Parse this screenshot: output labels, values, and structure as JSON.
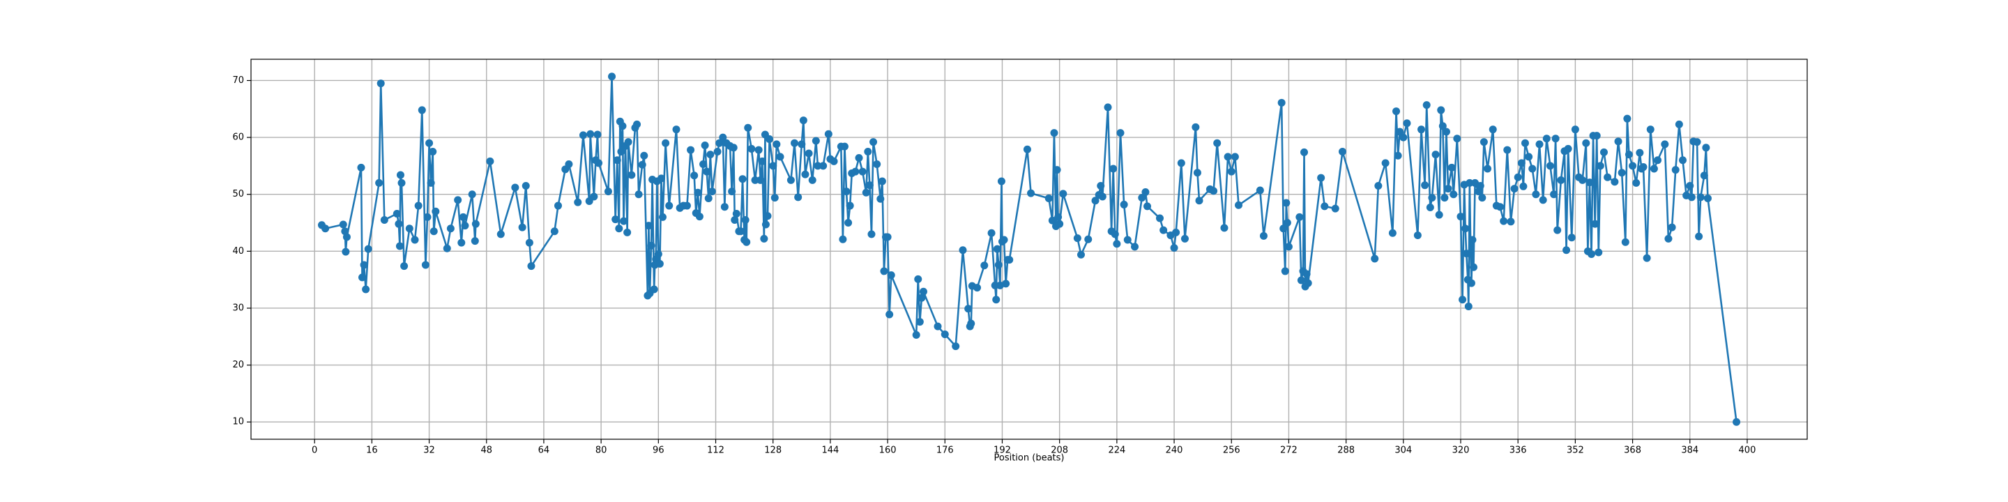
{
  "chart_data": {
    "type": "line",
    "x_label": "Position (beats)",
    "color": "#1f77b4",
    "grid": true,
    "xlim": [
      -17.75,
      416.75
    ],
    "ylim": [
      6.965,
      73.735
    ],
    "xticks": [
      0,
      16,
      32,
      48,
      64,
      80,
      96,
      112,
      128,
      144,
      160,
      176,
      192,
      208,
      224,
      240,
      256,
      272,
      288,
      304,
      320,
      336,
      352,
      368,
      384,
      400
    ],
    "yticks": [
      10,
      20,
      30,
      40,
      50,
      60,
      70
    ],
    "x": [
      2,
      3,
      8,
      8.5,
      8.7,
      9,
      13,
      13.3,
      13.8,
      14.3,
      15,
      18,
      18.5,
      19.5,
      23,
      23.5,
      23.8,
      24,
      24.3,
      25,
      26.5,
      28,
      29,
      30,
      31,
      31.5,
      32,
      32.5,
      33,
      33.3,
      33.8,
      37,
      38,
      40,
      41,
      41.5,
      42,
      44,
      44.8,
      45,
      49,
      52,
      56,
      58,
      59,
      60,
      60.5,
      67,
      68,
      70,
      71,
      73.5,
      75,
      76.7,
      77,
      78,
      78.5,
      79,
      79.3,
      82,
      83,
      84,
      84.5,
      85,
      85.3,
      85.6,
      86,
      86.3,
      86.8,
      87.3,
      87.6,
      88.5,
      89.5,
      90,
      90.5,
      91.5,
      92,
      93,
      93.3,
      93.6,
      94,
      94.3,
      94.8,
      95,
      95.3,
      95.6,
      96,
      96.4,
      96.8,
      97.2,
      98,
      99,
      101,
      102,
      103,
      104,
      105,
      106,
      106.5,
      107,
      107.5,
      108.5,
      109,
      109.5,
      110,
      110.5,
      111,
      112.5,
      113,
      114,
      114.5,
      115,
      116,
      116.5,
      117,
      117.3,
      117.8,
      118.5,
      119,
      119.5,
      120,
      120.3,
      120.6,
      121,
      122,
      123,
      124,
      124.5,
      125,
      125.5,
      125.8,
      126,
      126.5,
      127,
      128,
      128.5,
      129,
      130,
      133,
      134,
      135,
      136,
      136.5,
      137,
      138,
      139,
      140,
      140.5,
      142,
      143.5,
      144,
      145,
      147,
      147.5,
      148,
      148.5,
      149,
      149.5,
      150,
      151,
      152,
      153,
      154,
      154.5,
      155,
      155.5,
      156,
      157,
      158,
      158.5,
      159,
      159.5,
      160,
      160.5,
      161,
      168,
      168.5,
      169,
      169.5,
      170,
      174,
      176,
      179,
      181,
      182.5,
      183,
      183.3,
      183.6,
      185,
      187,
      189,
      190,
      190.3,
      190.6,
      191,
      191.4,
      191.8,
      192,
      192.5,
      193,
      193.5,
      194,
      199,
      200,
      205,
      206,
      206.5,
      207,
      207.3,
      207.6,
      208,
      209,
      213,
      214,
      216,
      218,
      219,
      219.5,
      220,
      221.5,
      222.5,
      223,
      223.5,
      224,
      225,
      226,
      227,
      229,
      231,
      232,
      232.5,
      236,
      237,
      239,
      240,
      240.5,
      242,
      243,
      246,
      246.5,
      247,
      250,
      251,
      252,
      254,
      255,
      256,
      257,
      258,
      264,
      265,
      270,
      270.5,
      271,
      271.3,
      271.6,
      272,
      275,
      275.5,
      276,
      276.3,
      276.6,
      277,
      277.4,
      281,
      282,
      285,
      287,
      296,
      297,
      299,
      301,
      302,
      302.5,
      303,
      304,
      305,
      308,
      309,
      310,
      310.5,
      311.5,
      312,
      313,
      314,
      314.5,
      315,
      315.5,
      316,
      316.5,
      317.5,
      318,
      319,
      320,
      320.5,
      321,
      321.3,
      321.6,
      322,
      322.2,
      322.5,
      322.8,
      323,
      323.3,
      323.6,
      324,
      325,
      325.5,
      326,
      326.5,
      327.5,
      329,
      330,
      331,
      332,
      333,
      334,
      335,
      336,
      337,
      337.5,
      338,
      339,
      340,
      341,
      342,
      343,
      344,
      345,
      346,
      346.5,
      347,
      348,
      349,
      349.5,
      350,
      351,
      352,
      353,
      354,
      355,
      355.5,
      356,
      356.5,
      357,
      357.5,
      358,
      358.5,
      359,
      360,
      361,
      363,
      364,
      365,
      366,
      366.5,
      367,
      368,
      369,
      370,
      370.5,
      371,
      372,
      373,
      374,
      375,
      377,
      378,
      379,
      380,
      381,
      382,
      383,
      384,
      384.5,
      385,
      386,
      386.5,
      387,
      388,
      388.5,
      389,
      397
    ],
    "values": [
      44.6,
      44,
      44.7,
      43.5,
      39.9,
      42.5,
      54.7,
      35.4,
      37.6,
      33.3,
      40.4,
      52,
      69.5,
      45.5,
      46.6,
      44.8,
      40.9,
      53.4,
      52,
      37.4,
      44,
      42,
      48,
      64.8,
      37.6,
      46,
      59,
      52,
      57.5,
      43.5,
      47,
      40.5,
      44,
      49,
      41.5,
      46,
      44.5,
      50,
      41.8,
      44.8,
      55.8,
      43,
      51.2,
      44.2,
      51.5,
      41.5,
      37.4,
      43.5,
      48,
      54.4,
      55.3,
      48.6,
      60.4,
      48.8,
      60.6,
      49.6,
      56,
      60.5,
      55.5,
      50.5,
      70.7,
      45.6,
      56,
      44,
      62.8,
      57.5,
      62,
      45.3,
      58.5,
      43.3,
      59.2,
      53.4,
      61.7,
      62.3,
      50,
      55.2,
      56.8,
      32.2,
      44.5,
      32.6,
      41,
      52.6,
      33.3,
      37.6,
      38.6,
      52.3,
      39.5,
      37.8,
      52.8,
      46,
      59,
      48,
      61.4,
      47.6,
      48,
      48,
      57.8,
      53.3,
      46.7,
      50.3,
      46.1,
      55.3,
      58.6,
      54,
      49.3,
      57,
      50.5,
      57.5,
      59,
      60,
      47.8,
      59,
      58.5,
      50.5,
      58.2,
      45.5,
      46.6,
      43.5,
      43.5,
      52.7,
      42,
      45.5,
      41.6,
      61.7,
      58,
      52.5,
      57.8,
      52.5,
      55.8,
      42.2,
      60.5,
      44.7,
      46.2,
      59.7,
      55,
      49.4,
      58.8,
      56.6,
      52.5,
      59,
      49.5,
      58.8,
      63,
      53.5,
      57.2,
      52.5,
      59.4,
      55,
      55,
      60.6,
      56.2,
      55.8,
      58.4,
      42.1,
      58.4,
      50.5,
      45,
      48,
      53.7,
      54,
      56.4,
      54,
      50.3,
      57.5,
      51.6,
      43,
      59.2,
      55.3,
      49.2,
      52.3,
      36.5,
      42.5,
      42.5,
      28.9,
      35.8,
      25.3,
      35.1,
      27.6,
      31.8,
      32.9,
      26.8,
      25.4,
      23.3,
      40.2,
      29.9,
      26.8,
      27.3,
      33.9,
      33.6,
      37.5,
      43.2,
      34,
      31.5,
      40.4,
      37.6,
      34,
      52.3,
      41.7,
      42,
      34.3,
      38.5,
      38.5,
      57.9,
      50.2,
      49.3,
      45.4,
      60.8,
      44.4,
      54.3,
      46,
      44.8,
      50.1,
      42.3,
      39.4,
      42.1,
      48.9,
      49.9,
      51.5,
      49.6,
      65.3,
      43.5,
      54.5,
      43,
      41.3,
      60.8,
      48.2,
      42,
      40.8,
      49.4,
      50.4,
      47.9,
      45.8,
      43.7,
      42.8,
      40.6,
      43.3,
      55.5,
      42.2,
      61.8,
      53.8,
      48.9,
      50.9,
      50.6,
      59,
      44.1,
      56.6,
      54,
      56.6,
      48.1,
      50.7,
      42.7,
      66.1,
      44,
      36.5,
      48.5,
      45,
      40.8,
      46,
      34.9,
      36.5,
      57.4,
      33.8,
      36,
      34.4,
      52.9,
      47.9,
      47.5,
      57.5,
      38.7,
      51.5,
      55.5,
      43.2,
      64.6,
      56.8,
      61,
      60,
      62.5,
      42.8,
      61.4,
      51.6,
      65.7,
      47.7,
      49.4,
      57,
      46.4,
      64.8,
      62,
      49.4,
      61,
      51,
      54.7,
      50,
      59.8,
      46.1,
      31.5,
      51.7,
      44,
      39.6,
      35,
      30.3,
      52,
      39.7,
      34.4,
      42,
      37.2,
      52,
      50.5,
      51.5,
      49.4,
      59.2,
      54.5,
      61.4,
      48,
      47.8,
      45.3,
      57.8,
      45.2,
      51,
      53,
      55.5,
      51.4,
      59,
      56.6,
      54.5,
      50,
      58.8,
      49,
      59.8,
      55,
      50,
      59.8,
      43.7,
      52.5,
      57.6,
      40.2,
      58,
      42.4,
      61.4,
      53,
      52.5,
      59,
      40,
      52.1,
      39.5,
      60.3,
      44.8,
      60.3,
      39.8,
      55,
      57.4,
      53,
      52.2,
      59.3,
      53.8,
      41.6,
      63.3,
      57,
      55,
      52,
      57.3,
      54.5,
      54.8,
      38.8,
      61.4,
      54.5,
      56,
      58.8,
      42.2,
      44.2,
      54.3,
      62.3,
      56,
      49.8,
      51.5,
      49.5,
      59.3,
      59.2,
      42.6,
      49.5,
      53.3,
      58.2,
      49.3,
      10
    ]
  }
}
